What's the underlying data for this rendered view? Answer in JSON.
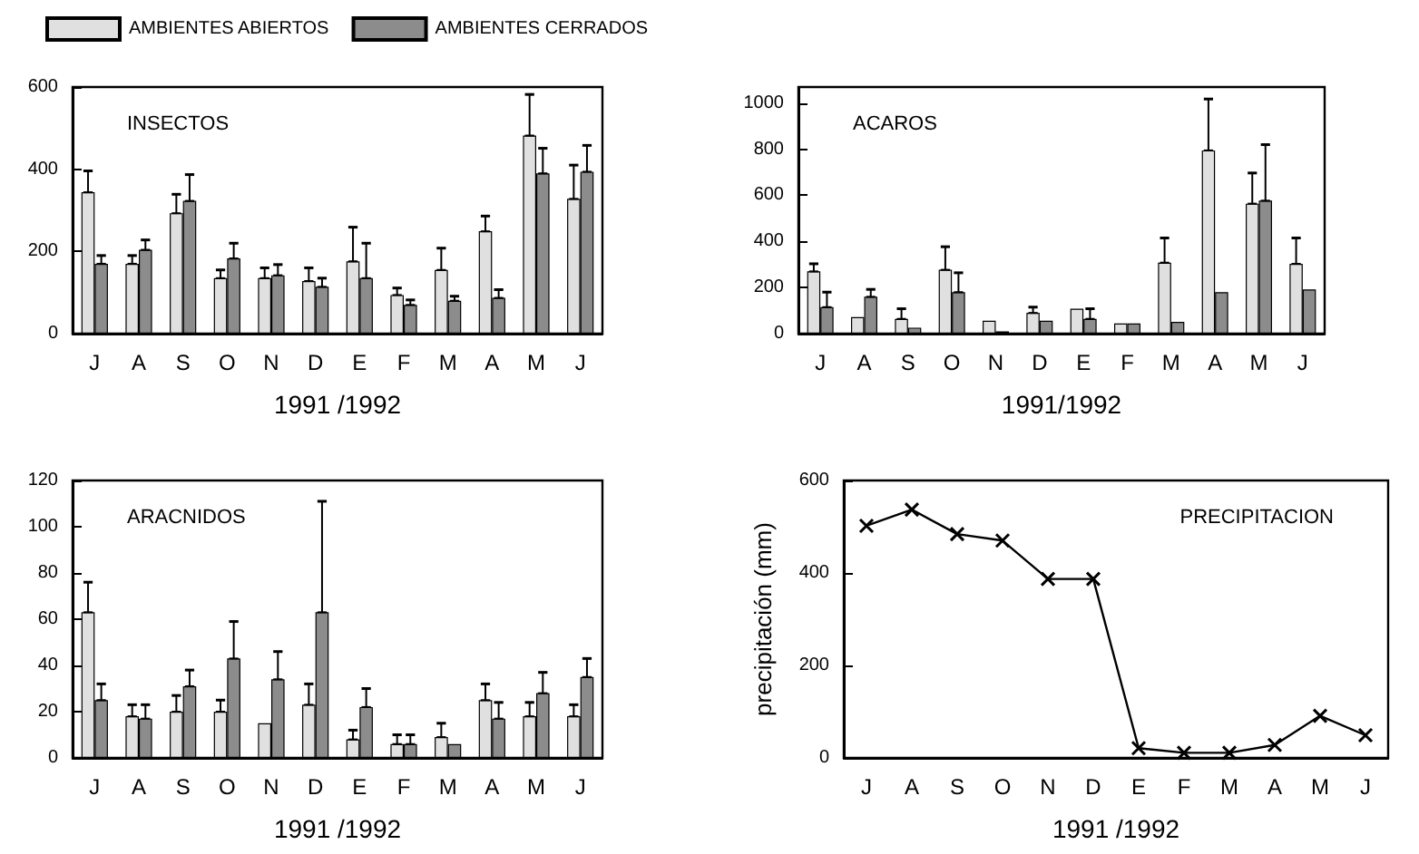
{
  "chart_data": [
    {
      "type": "bar",
      "title": "INSECTOS",
      "xlabel": "1991 /1992",
      "categories": [
        "J",
        "A",
        "S",
        "O",
        "N",
        "D",
        "E",
        "F",
        "M",
        "A",
        "M",
        "J"
      ],
      "ylim": [
        0,
        600
      ],
      "yticks": [
        0,
        200,
        400,
        600
      ],
      "grid": false,
      "legend": "top",
      "series": [
        {
          "name": "AMBIENTES ABIERTOS",
          "color": "#e0e0e0",
          "values": [
            344,
            170,
            293,
            135,
            135,
            128,
            176,
            94,
            155,
            249,
            482,
            328
          ],
          "errors": [
            [
              344,
              396
            ],
            [
              170,
              190
            ],
            [
              293,
              339
            ],
            [
              135,
              155
            ],
            [
              135,
              160
            ],
            [
              128,
              160
            ],
            [
              176,
              259
            ],
            [
              94,
              111
            ],
            [
              155,
              208
            ],
            [
              249,
              286
            ],
            [
              482,
              582
            ],
            [
              328,
              410
            ]
          ]
        },
        {
          "name": "AMBIENTES CERRADOS",
          "color": "#8c8c8c",
          "values": [
            170,
            204,
            323,
            183,
            142,
            114,
            135,
            70,
            80,
            87,
            390,
            394
          ],
          "errors": [
            [
              170,
              190
            ],
            [
              204,
              228
            ],
            [
              323,
              387
            ],
            [
              183,
              220
            ],
            [
              142,
              168
            ],
            [
              114,
              135
            ],
            [
              135,
              220
            ],
            [
              70,
              82
            ],
            [
              80,
              91
            ],
            [
              87,
              107
            ],
            [
              390,
              451
            ],
            [
              394,
              458
            ]
          ]
        }
      ]
    },
    {
      "type": "bar",
      "title": "ACAROS",
      "xlabel": "1991/1992",
      "categories": [
        "J",
        "A",
        "S",
        "O",
        "N",
        "D",
        "E",
        "F",
        "M",
        "A",
        "M",
        "J"
      ],
      "ylim": [
        0,
        1070
      ],
      "yticks": [
        0,
        200,
        400,
        600,
        800,
        1000
      ],
      "grid": false,
      "series": [
        {
          "color": "#e0e0e0",
          "values": [
            270,
            72,
            64,
            277,
            56,
            90,
            108,
            44,
            308,
            795,
            564,
            303
          ],
          "errors": [
            [
              270,
              303
            ],
            null,
            [
              64,
              108
            ],
            [
              277,
              377
            ],
            null,
            [
              90,
              115
            ],
            null,
            null,
            [
              308,
              415
            ],
            [
              795,
              1018
            ],
            [
              564,
              697
            ],
            [
              303,
              415
            ]
          ]
        },
        {
          "color": "#8c8c8c",
          "values": [
            115,
            160,
            26,
            180,
            10,
            56,
            64,
            44,
            51,
            180,
            577,
            192
          ],
          "errors": [
            [
              115,
              180
            ],
            [
              160,
              192
            ],
            null,
            [
              180,
              264
            ],
            null,
            null,
            [
              64,
              108
            ],
            null,
            null,
            null,
            [
              577,
              820
            ],
            null
          ]
        }
      ]
    },
    {
      "type": "bar",
      "title": "ARACNIDOS",
      "xlabel": "1991 /1992",
      "categories": [
        "J",
        "A",
        "S",
        "O",
        "N",
        "D",
        "E",
        "F",
        "M",
        "A",
        "M",
        "J"
      ],
      "ylim": [
        0,
        120
      ],
      "yticks": [
        0,
        20,
        40,
        60,
        80,
        100,
        120
      ],
      "grid": false,
      "series": [
        {
          "color": "#e0e0e0",
          "values": [
            63,
            18,
            20,
            20,
            15,
            23,
            8,
            6,
            9,
            25,
            18,
            18
          ],
          "errors": [
            [
              63,
              76
            ],
            [
              18,
              23
            ],
            [
              20,
              27
            ],
            [
              20,
              25
            ],
            null,
            [
              23,
              32
            ],
            [
              8,
              12
            ],
            [
              6,
              10
            ],
            [
              9,
              15
            ],
            [
              25,
              32
            ],
            [
              18,
              24
            ],
            [
              18,
              23
            ]
          ]
        },
        {
          "color": "#8c8c8c",
          "values": [
            25,
            17,
            31,
            43,
            34,
            63,
            22,
            6,
            6,
            17,
            28,
            35
          ],
          "errors": [
            [
              25,
              32
            ],
            [
              17,
              23
            ],
            [
              31,
              38
            ],
            [
              43,
              59
            ],
            [
              34,
              46
            ],
            [
              63,
              111
            ],
            [
              22,
              30
            ],
            [
              6,
              10
            ],
            null,
            [
              17,
              24
            ],
            [
              28,
              37
            ],
            [
              35,
              43
            ]
          ]
        }
      ]
    },
    {
      "type": "line",
      "title": "PRECIPITACION",
      "xlabel": "1991 /1992",
      "ylabel": "precipitación (mm)",
      "categories": [
        "J",
        "A",
        "S",
        "O",
        "N",
        "D",
        "E",
        "F",
        "M",
        "A",
        "M",
        "J"
      ],
      "ylim": [
        0,
        600
      ],
      "yticks": [
        0,
        200,
        400,
        600
      ],
      "grid": false,
      "marker": "cross",
      "line_style": "solid",
      "series": [
        {
          "color": "#000000",
          "values": [
            502,
            537,
            484,
            470,
            387,
            387,
            21,
            11,
            11,
            28,
            91,
            49
          ]
        }
      ]
    }
  ]
}
